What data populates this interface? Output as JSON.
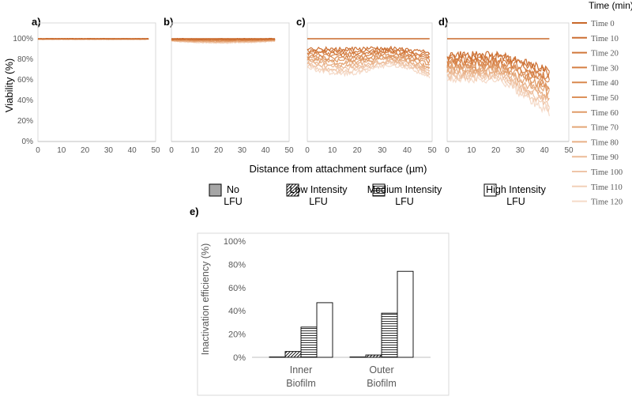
{
  "chart_data": [
    {
      "id": "a",
      "label": "a)",
      "type": "line",
      "ylabel": "Viability (%)",
      "xlabel": "Distance from attachment surface (µm)",
      "yticks": [
        "0%",
        "20%",
        "40%",
        "60%",
        "80%",
        "100%"
      ],
      "ylim": [
        0,
        110
      ],
      "xticks": [
        "0",
        "10",
        "20",
        "30",
        "40",
        "50"
      ],
      "xlim": [
        0,
        50
      ],
      "xmax": 47,
      "profile": "flat",
      "spread": 0.5
    },
    {
      "id": "b",
      "label": "b)",
      "type": "line",
      "xticks": [
        "0",
        "10",
        "20",
        "30",
        "40",
        "50"
      ],
      "xlim": [
        0,
        50
      ],
      "xmax": 44,
      "profile": "slight",
      "spread": 4
    },
    {
      "id": "c",
      "label": "c)",
      "type": "line",
      "xticks": [
        "0",
        "10",
        "20",
        "30",
        "40",
        "50"
      ],
      "xlim": [
        0,
        50
      ],
      "xmax": 49,
      "profile": "medium",
      "spread": 32
    },
    {
      "id": "d",
      "label": "d)",
      "type": "line",
      "xticks": [
        "0",
        "10",
        "20",
        "30",
        "40",
        "50"
      ],
      "xlim": [
        0,
        50
      ],
      "xmax": 42,
      "profile": "high",
      "spread": 58
    },
    {
      "id": "e",
      "label": "e)",
      "type": "bar",
      "ylabel": "Inactivation efficiency  (%)",
      "yticks": [
        "0%",
        "20%",
        "40%",
        "60%",
        "80%",
        "100%"
      ],
      "ylim": [
        0,
        100
      ],
      "categories": [
        "Inner\nBiofilm",
        "Outer\nBiofilm"
      ],
      "series": [
        {
          "name": "No\nLFU",
          "values": [
            0.3,
            0.3
          ],
          "fill": "gray"
        },
        {
          "name": "Low Intensity\nLFU",
          "values": [
            5,
            2
          ],
          "fill": "diagonal"
        },
        {
          "name": "Medium Intensity\nLFU",
          "values": [
            26,
            38
          ],
          "fill": "horizontal"
        },
        {
          "name": "High Intensity\nLFU",
          "values": [
            47,
            74
          ],
          "fill": "white"
        }
      ]
    }
  ],
  "legend": {
    "title": "Time (min)",
    "entries": [
      "Time 0",
      "Time 10",
      "Time 20",
      "Time 30",
      "Time 40",
      "Time 50",
      "Time 60",
      "Time 70",
      "Time 80",
      "Time 90",
      "Time 100",
      "Time 110",
      "Time 120"
    ],
    "colors": [
      "#c8682a",
      "#cc6f32",
      "#d0773a",
      "#d57f44",
      "#d9884f",
      "#dc915b",
      "#e09b68",
      "#e4a677",
      "#e8b087",
      "#ecbb98",
      "#efc5a8",
      "#f2d0b8",
      "#f5dac8"
    ]
  }
}
